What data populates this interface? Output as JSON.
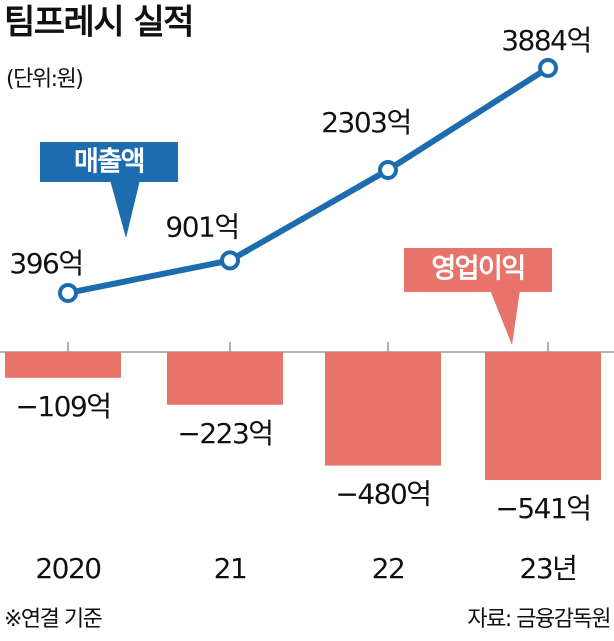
{
  "chart_data": {
    "type": "bar",
    "title": "팀프레시 실적",
    "subtitle": "(단위:원)",
    "categories": [
      "2020",
      "21",
      "22",
      "23년"
    ],
    "series": [
      {
        "name": "매출액",
        "type": "line",
        "axis": "y2",
        "color": "#1d6cb0",
        "values": [
          396,
          901,
          2303,
          3884
        ],
        "value_labels": [
          "396억",
          "901억",
          "2303억",
          "3884억"
        ]
      },
      {
        "name": "영업이익",
        "type": "bar",
        "color": "#e8736a",
        "values": [
          -109,
          -223,
          -480,
          -541
        ],
        "value_labels": [
          "−109억",
          "−223억",
          "−480억",
          "−541억"
        ]
      }
    ],
    "ylim": [
      -600,
      0
    ],
    "y2lim": [
      0,
      4000
    ],
    "note": "※연결 기준",
    "source": "자료: 금융감독원"
  }
}
